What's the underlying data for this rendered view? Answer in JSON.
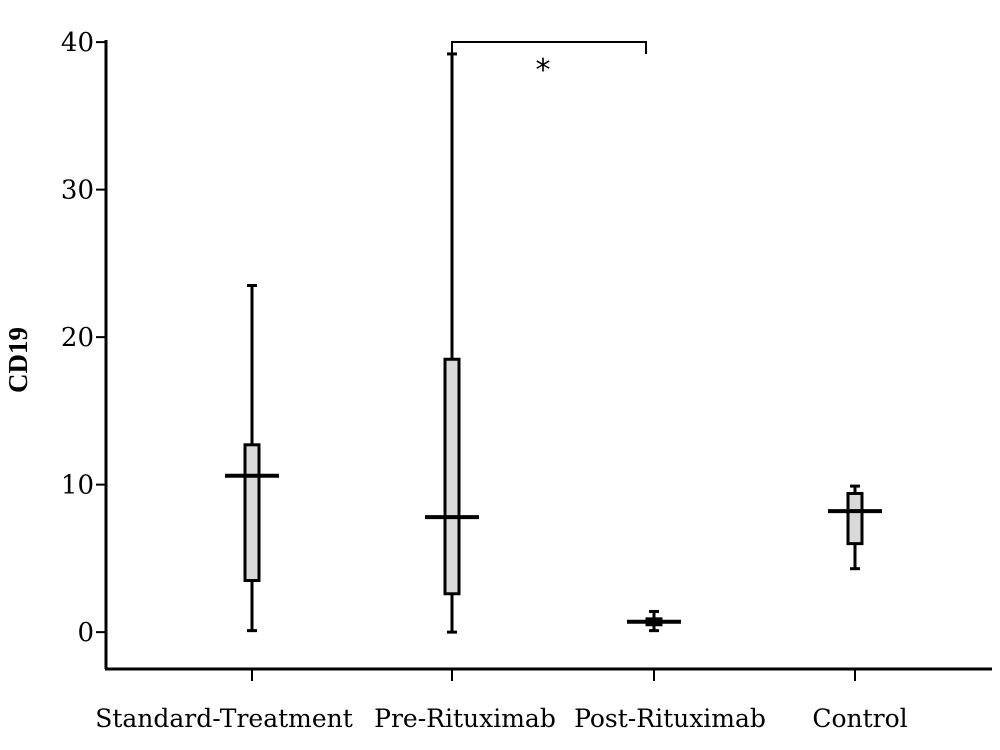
{
  "chart_data": {
    "type": "box",
    "title": "",
    "xlabel": "",
    "ylabel": "CD19",
    "ylim": [
      -2.5,
      41.5
    ],
    "yticks": [
      0,
      10,
      20,
      30,
      40
    ],
    "categories": [
      "Standard-Treatment",
      "Pre-Rituximab",
      "Post-Rituximab",
      "Control"
    ],
    "boxes": [
      {
        "category": "Standard-Treatment",
        "min": 0.1,
        "q1": 3.5,
        "median": 10.6,
        "q3": 12.7,
        "max": 23.5
      },
      {
        "category": "Pre-Rituximab",
        "min": 0.0,
        "q1": 2.6,
        "median": 7.8,
        "q3": 18.5,
        "max": 39.2
      },
      {
        "category": "Post-Rituximab",
        "min": 0.1,
        "q1": 0.5,
        "median": 0.7,
        "q3": 0.9,
        "max": 1.4
      },
      {
        "category": "Control",
        "min": 4.3,
        "q1": 6.0,
        "median": 8.2,
        "q3": 9.4,
        "max": 9.9
      }
    ],
    "annotations": [
      {
        "type": "significance-bracket",
        "from": "Pre-Rituximab",
        "to": "Post-Rituximab",
        "label": "*"
      }
    ],
    "colors": {
      "box_fill": "#d9d9d9",
      "line": "#000000"
    },
    "grid": false,
    "legend": "none"
  }
}
